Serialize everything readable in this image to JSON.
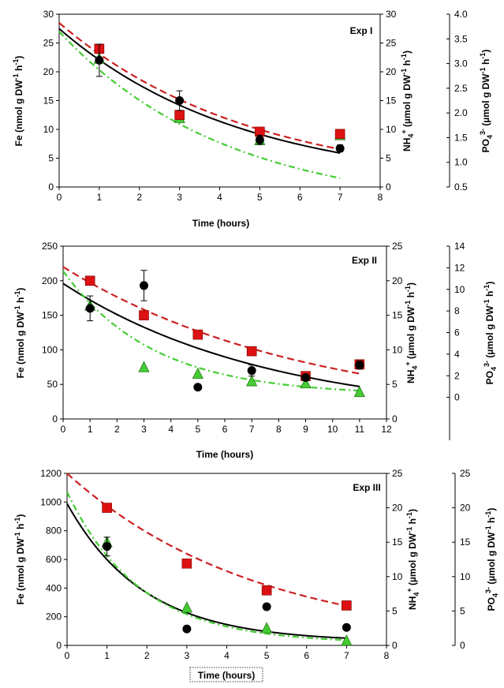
{
  "chart_data": [
    {
      "type": "scatter",
      "title": "Exp I",
      "xlabel": "Time (hours)",
      "ylabel_left": {
        "main": "Fe (nmol g DW",
        "sup": "-1",
        "mid": " h",
        "sup2": "-1",
        "end": ")"
      },
      "ylabel_right1": {
        "main": "NH",
        "sub": "4",
        "sup": "+",
        "rest": " (µmol g DW",
        "sup2": "-1",
        "mid": " h",
        "sup3": "-1",
        "end": ")"
      },
      "ylabel_right2": {
        "main": "PO",
        "sub": "4",
        "sup": "3-",
        "rest": " (µmol g DW",
        "sup2": "-1",
        "mid": " h",
        "sup3": "-1",
        "end": ")"
      },
      "xlim": [
        0,
        8
      ],
      "xticks": [
        "0",
        "1",
        "2",
        "3",
        "4",
        "5",
        "6",
        "7",
        "8"
      ],
      "ylim_left": [
        0,
        30
      ],
      "yticks_left": [
        "0",
        "5",
        "10",
        "15",
        "20",
        "25",
        "30"
      ],
      "ylim_right1": [
        0,
        30
      ],
      "yticks_right1": [
        "0",
        "5",
        "10",
        "15",
        "20",
        "25",
        "30"
      ],
      "ylim_right2": [
        0.5,
        4.0
      ],
      "yticks_right2": [
        "0.5",
        "1.0",
        "1.5",
        "2.0",
        "2.5",
        "3.0",
        "3.5",
        "4.0"
      ],
      "series": [
        {
          "marker": "circle",
          "color": "#000000",
          "axis": "left",
          "x": [
            1,
            3,
            5,
            7
          ],
          "y": [
            22,
            15,
            8.2,
            6.7
          ],
          "err": [
            2.8,
            1.7,
            0.8,
            0.6
          ]
        },
        {
          "marker": "square",
          "color": "#dd1111",
          "axis": "right1",
          "x": [
            1,
            3,
            5,
            7
          ],
          "y": [
            24,
            12.5,
            9.6,
            9.2
          ]
        },
        {
          "marker": "triangle",
          "color": "#44cc33",
          "axis": "right2",
          "x": [
            1,
            3,
            5,
            7
          ],
          "y": [
            3.1,
            1.9,
            1.45,
            1.55
          ]
        }
      ],
      "fits": [
        {
          "style": "solid",
          "color": "#000000",
          "axis": "left",
          "a": 27.5,
          "k": 0.22
        },
        {
          "style": "dash",
          "color": "#cc2222",
          "axis": "right1",
          "a": 28.5,
          "k": 0.21
        },
        {
          "style": "dashdot",
          "color": "#44cc33",
          "axis": "right2",
          "a": 3.65,
          "k": 0.24
        }
      ]
    },
    {
      "type": "scatter",
      "title": "Exp II",
      "xlabel": "Time (hours)",
      "ylabel_left": {
        "main": "Fe (nmol g DW",
        "sup": "-1",
        "mid": " h",
        "sup2": "-1",
        "end": ")"
      },
      "ylabel_right1": {
        "main": "NH",
        "sub": "4",
        "sup": "+",
        "rest": " (µmol g DW",
        "sup2": "-1",
        "mid": " h",
        "sup3": "-1",
        "end": ")"
      },
      "ylabel_right2": {
        "main": "PO",
        "sub": "4",
        "sup": "3-",
        "rest": " (µmol g DW",
        "sup2": "-1",
        "mid": " h",
        "sup3": "-1",
        "end": ")"
      },
      "xlim": [
        0,
        12
      ],
      "xticks": [
        "0",
        "1",
        "2",
        "3",
        "4",
        "5",
        "6",
        "7",
        "8",
        "9",
        "10",
        "11",
        "12"
      ],
      "ylim_left": [
        0,
        250
      ],
      "yticks_left": [
        "0",
        "50",
        "100",
        "150",
        "200",
        "250"
      ],
      "ylim_right1": [
        0,
        25
      ],
      "yticks_right1": [
        "0",
        "5",
        "10",
        "15",
        "20",
        "25"
      ],
      "ylim_right2": [
        -2,
        14
      ],
      "yticks_right2": [
        "0",
        "2",
        "4",
        "6",
        "8",
        "10",
        "12",
        "14"
      ],
      "series": [
        {
          "marker": "circle",
          "color": "#000000",
          "axis": "left",
          "x": [
            1,
            3,
            5,
            7,
            9,
            11
          ],
          "y": [
            160,
            193,
            46,
            70,
            60,
            78
          ],
          "err": [
            18,
            22,
            0,
            8,
            0,
            6
          ]
        },
        {
          "marker": "square",
          "color": "#dd1111",
          "axis": "right1",
          "x": [
            1,
            3,
            5,
            7,
            9,
            11
          ],
          "y": [
            20,
            15,
            12.2,
            9.8,
            6.2,
            7.9
          ]
        },
        {
          "marker": "triangle",
          "color": "#44cc33",
          "axis": "right2",
          "x": [
            1,
            3,
            5,
            7,
            9,
            11
          ],
          "y": [
            8.5,
            2.8,
            2.2,
            1.5,
            1.3,
            0.5
          ]
        }
      ],
      "fits": [
        {
          "style": "solid",
          "color": "#000000",
          "axis": "left",
          "a": 196,
          "k": 0.13
        },
        {
          "style": "dash",
          "color": "#cc2222",
          "axis": "right1",
          "a": 22,
          "k": 0.11
        },
        {
          "style": "dashdot",
          "color": "#44cc33",
          "axis": "right2",
          "c": 0.2,
          "a": 11.5,
          "k": 0.3
        }
      ]
    },
    {
      "type": "scatter",
      "title": "Exp III",
      "xlabel": "Time (hours)",
      "ylabel_left": {
        "main": "Fe (nmol g DW",
        "sup": "-1",
        "mid": " h",
        "sup2": "-1",
        "end": ")"
      },
      "ylabel_right1": {
        "main": "NH",
        "sub": "4",
        "sup": "+",
        "rest": " (µmol g DW",
        "sup2": "-1",
        "mid": " h",
        "sup3": "-1",
        "end": ")"
      },
      "ylabel_right2": {
        "main": "PO",
        "sub": "4",
        "sup": "3-",
        "rest": " (µmol g DW",
        "sup2": "-1",
        "mid": " h",
        "sup3": "-1",
        "end": ")"
      },
      "xlim": [
        0,
        8
      ],
      "xticks": [
        "0",
        "1",
        "2",
        "3",
        "4",
        "5",
        "6",
        "7",
        "8"
      ],
      "ylim_left": [
        0,
        1200
      ],
      "yticks_left": [
        "0",
        "200",
        "400",
        "600",
        "800",
        "1000",
        "1200"
      ],
      "ylim_right1": [
        0,
        25
      ],
      "yticks_right1": [
        "0",
        "5",
        "10",
        "15",
        "20",
        "25"
      ],
      "ylim_right2": [
        0,
        25
      ],
      "yticks_right2": [
        "0",
        "5",
        "10",
        "15",
        "20",
        "25"
      ],
      "series": [
        {
          "marker": "circle",
          "color": "#000000",
          "axis": "left",
          "x": [
            1,
            3,
            5,
            7
          ],
          "y": [
            690,
            115,
            270,
            125
          ],
          "err": [
            65,
            0,
            0,
            0
          ]
        },
        {
          "marker": "square",
          "color": "#dd1111",
          "axis": "right1",
          "x": [
            1,
            3,
            5,
            7
          ],
          "y": [
            20,
            11.9,
            8,
            5.8
          ]
        },
        {
          "marker": "triangle",
          "color": "#44cc33",
          "axis": "right2",
          "x": [
            1,
            3,
            5,
            7
          ],
          "y": [
            15,
            5.5,
            2.5,
            0.7
          ]
        }
      ],
      "fits": [
        {
          "style": "solid",
          "color": "#000000",
          "axis": "left",
          "c": 25,
          "a": 965,
          "k": 0.52
        },
        {
          "style": "dash",
          "color": "#cc2222",
          "axis": "right1",
          "a": 25,
          "k": 0.21
        },
        {
          "style": "dashdot",
          "color": "#44cc33",
          "axis": "right2",
          "c": 0.3,
          "a": 22,
          "k": 0.55
        }
      ]
    }
  ]
}
